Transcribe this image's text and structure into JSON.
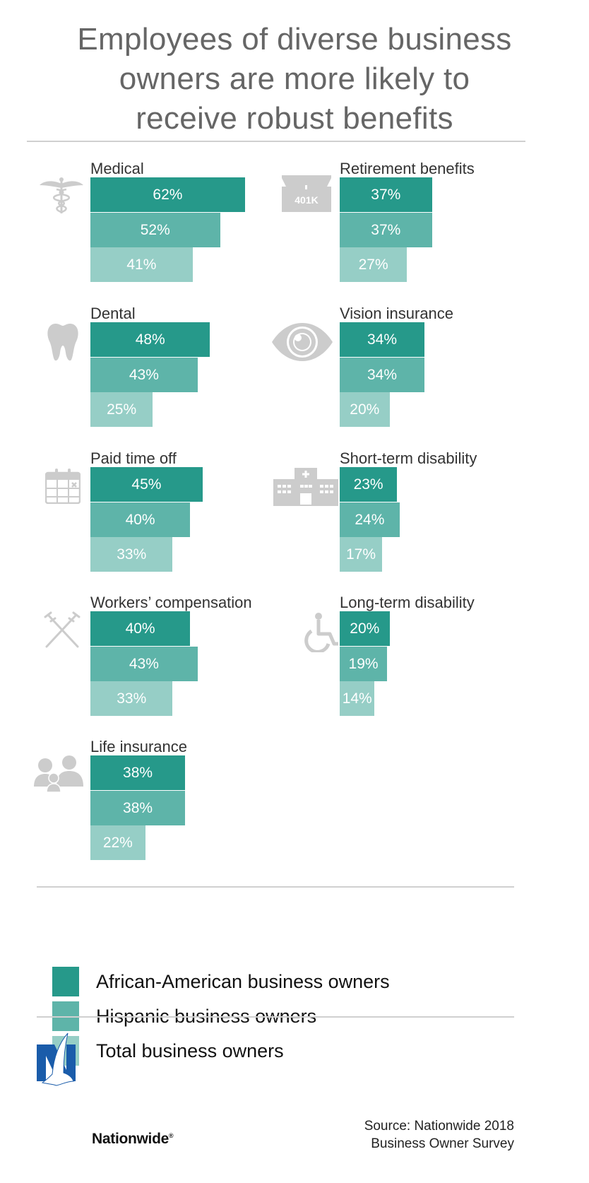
{
  "title_lines": [
    "Employees of diverse business",
    "owners are more likely to",
    "receive robust benefits"
  ],
  "colors": {
    "african_american": "#26998A",
    "hispanic": "#5EB4A9",
    "total": "#96CEC6",
    "icon_gray": "#CCCCCC",
    "title_gray": "#666666",
    "nationwide_blue": "#1A5CAA"
  },
  "chart_data": {
    "type": "bar",
    "orientation": "horizontal",
    "title": "Employees of diverse business owners are more likely to receive robust benefits",
    "xlabel": "",
    "ylabel": "",
    "unit": "%",
    "grid": false,
    "legend_position": "bottom",
    "series_names": [
      "African-American business owners",
      "Hispanic business owners",
      "Total business owners"
    ],
    "categories": [
      {
        "name": "Medical",
        "icon": "caduceus-icon",
        "values": [
          62,
          52,
          41
        ],
        "labels": [
          "62%",
          "52%",
          "41%"
        ]
      },
      {
        "name": "Retirement benefits",
        "icon": "401k-icon",
        "icon_text": "401K",
        "values": [
          37,
          37,
          27
        ],
        "labels": [
          "37%",
          "37%",
          "27%"
        ]
      },
      {
        "name": "Dental",
        "icon": "tooth-icon",
        "values": [
          48,
          43,
          25
        ],
        "labels": [
          "48%",
          "43%",
          "25%"
        ]
      },
      {
        "name": "Vision insurance",
        "icon": "eye-icon",
        "values": [
          34,
          34,
          20
        ],
        "labels": [
          "34%",
          "34%",
          "20%"
        ]
      },
      {
        "name": "Paid time off",
        "icon": "calendar-icon",
        "values": [
          45,
          40,
          33
        ],
        "labels": [
          "45%",
          "40%",
          "33%"
        ]
      },
      {
        "name": "Short-term disability",
        "icon": "hospital-icon",
        "values": [
          23,
          24,
          17
        ],
        "labels": [
          "23%",
          "24%",
          "17%"
        ]
      },
      {
        "name": "Workers’ compensation",
        "icon": "crutches-icon",
        "values": [
          40,
          43,
          33
        ],
        "labels": [
          "40%",
          "43%",
          "33%"
        ]
      },
      {
        "name": "Long-term disability",
        "icon": "wheelchair-icon",
        "values": [
          20,
          19,
          14
        ],
        "labels": [
          "20%",
          "19%",
          "14%"
        ]
      },
      {
        "name": "Life insurance",
        "icon": "family-icon",
        "values": [
          38,
          38,
          22
        ],
        "labels": [
          "38%",
          "38%",
          "22%"
        ]
      }
    ]
  },
  "legend": [
    {
      "label": "African-American business owners",
      "color_key": "african_american"
    },
    {
      "label": "Hispanic business owners",
      "color_key": "hispanic"
    },
    {
      "label": "Total business owners",
      "color_key": "total"
    }
  ],
  "footer": {
    "logo_text": "Nationwide",
    "logo_mark": "®",
    "source_lines": [
      "Source: Nationwide 2018",
      "Business Owner Survey"
    ]
  }
}
